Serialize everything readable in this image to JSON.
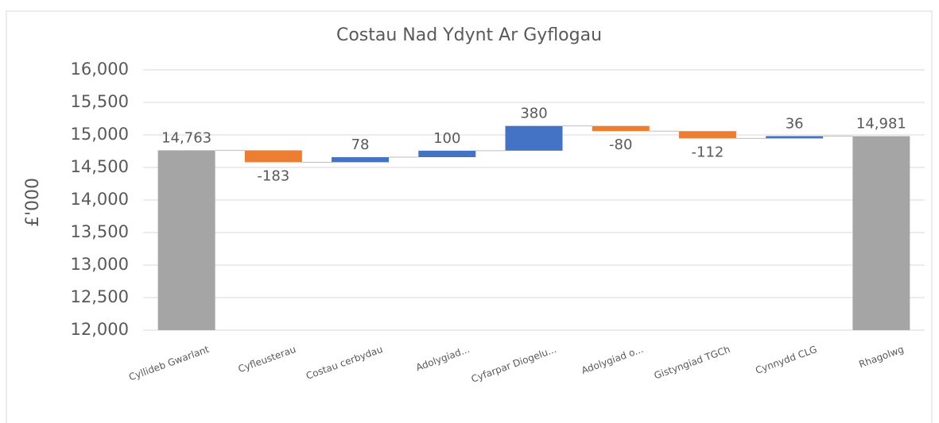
{
  "chart_data": {
    "type": "waterfall",
    "title": "Costau Nad Ydynt Ar Gyflogau",
    "y_label": "£'000",
    "categories": [
      "Cyllideb Gwarlant",
      "Cyfleusterau",
      "Costau cerbydau",
      "Adolygiad...",
      "Cyfarpar Diogelu...",
      "Adolygiad o...",
      "Gistyngiad TGCh",
      "Cynnydd CLG",
      "Rhagolwg"
    ],
    "values": [
      14763,
      -183,
      78,
      100,
      380,
      -80,
      -112,
      36,
      14981
    ],
    "value_labels": [
      "14,763",
      "-183",
      "78",
      "100",
      "380",
      "-80",
      "-112",
      "36",
      "14,981"
    ],
    "colors": [
      "#a5a5a5",
      "#ed7d31",
      "#4472c4",
      "#4472c4",
      "#4472c4",
      "#ed7d31",
      "#ed7d31",
      "#4472c4",
      "#a5a5a5"
    ],
    "ylim": [
      12000,
      16000
    ],
    "yticks": [
      {
        "value": 12000,
        "label": "12,000"
      },
      {
        "value": 12500,
        "label": "12,500"
      },
      {
        "value": 13000,
        "label": "13,000"
      },
      {
        "value": 13500,
        "label": "13,500"
      },
      {
        "value": 14000,
        "label": "14,000"
      },
      {
        "value": 14500,
        "label": "14,500"
      },
      {
        "value": 15000,
        "label": "15,000"
      },
      {
        "value": 15500,
        "label": "15,500"
      },
      {
        "value": 16000,
        "label": "16,000"
      }
    ],
    "grid": true
  }
}
